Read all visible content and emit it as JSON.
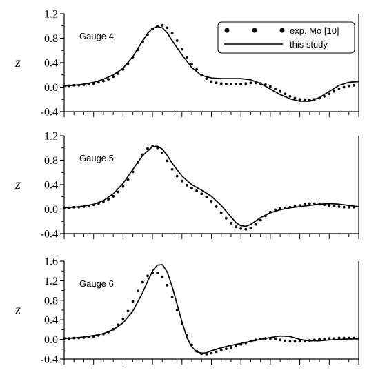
{
  "chart_data": [
    {
      "type": "line",
      "annotation": "Gauge 4",
      "ylabel": "z",
      "ylim": [
        -0.4,
        1.2
      ],
      "yticks": [
        -0.4,
        0.0,
        0.4,
        0.8,
        1.2
      ],
      "ytick_labels": [
        "-0.4",
        "0.0",
        "0.4",
        "0.8",
        "1.2"
      ],
      "xlim": [
        0,
        30
      ],
      "legend": {
        "placement": "top-right",
        "entries": [
          {
            "label": "exp. Mo [10]",
            "marker": "dot"
          },
          {
            "label": "this study",
            "marker": "line"
          }
        ]
      },
      "series": [
        {
          "name": "exp. Mo [10]",
          "style": "dots",
          "x": [
            0,
            0.5,
            1,
            1.5,
            2,
            2.5,
            3,
            3.5,
            4,
            4.5,
            5,
            5.5,
            6,
            6.5,
            7,
            7.5,
            8,
            8.5,
            9,
            9.5,
            10,
            10.5,
            11,
            11.5,
            12,
            12.5,
            13,
            13.5,
            14,
            14.5,
            15,
            15.5,
            16,
            16.5,
            17,
            17.5,
            18,
            18.5,
            19,
            19.5,
            20,
            20.5,
            21,
            21.5,
            22,
            22.5,
            23,
            23.5,
            24,
            24.5,
            25,
            25.5,
            26,
            26.5,
            27,
            27.5,
            28,
            28.5,
            29,
            29.5
          ],
          "y": [
            0.02,
            0.02,
            0.03,
            0.03,
            0.04,
            0.05,
            0.06,
            0.08,
            0.1,
            0.13,
            0.17,
            0.22,
            0.29,
            0.38,
            0.49,
            0.61,
            0.74,
            0.86,
            0.95,
            1.0,
            1.01,
            0.97,
            0.88,
            0.76,
            0.62,
            0.49,
            0.38,
            0.29,
            0.2,
            0.14,
            0.09,
            0.07,
            0.06,
            0.05,
            0.05,
            0.05,
            0.05,
            0.06,
            0.07,
            0.07,
            0.06,
            0.04,
            0.01,
            -0.03,
            -0.07,
            -0.11,
            -0.15,
            -0.18,
            -0.2,
            -0.21,
            -0.21,
            -0.2,
            -0.18,
            -0.15,
            -0.11,
            -0.07,
            -0.03,
            0.0,
            0.02,
            0.03
          ]
        },
        {
          "name": "this study",
          "style": "solid",
          "x": [
            0,
            1,
            2,
            3,
            4,
            5,
            6,
            7,
            8,
            8.5,
            9,
            9.5,
            10,
            10.5,
            11,
            12,
            13,
            14,
            15,
            16,
            17,
            18,
            19,
            20,
            21,
            22,
            23,
            24,
            25,
            26,
            27,
            28,
            29,
            30
          ],
          "y": [
            0.02,
            0.03,
            0.05,
            0.08,
            0.13,
            0.2,
            0.31,
            0.5,
            0.76,
            0.88,
            0.96,
            0.99,
            0.97,
            0.89,
            0.76,
            0.53,
            0.32,
            0.19,
            0.15,
            0.14,
            0.14,
            0.14,
            0.12,
            0.06,
            -0.03,
            -0.12,
            -0.19,
            -0.23,
            -0.23,
            -0.17,
            -0.07,
            0.03,
            0.08,
            0.09
          ]
        }
      ]
    },
    {
      "type": "line",
      "annotation": "Gauge 5",
      "ylabel": "z",
      "ylim": [
        -0.4,
        1.2
      ],
      "yticks": [
        -0.4,
        0.0,
        0.4,
        0.8,
        1.2
      ],
      "ytick_labels": [
        "-0.4",
        "0.0",
        "0.4",
        "0.8",
        "1.2"
      ],
      "xlim": [
        0,
        30
      ],
      "series": [
        {
          "name": "exp. Mo [10]",
          "style": "dots",
          "x": [
            0,
            0.5,
            1,
            1.5,
            2,
            2.5,
            3,
            3.5,
            4,
            4.5,
            5,
            5.5,
            6,
            6.5,
            7,
            7.5,
            8,
            8.5,
            9,
            9.5,
            10,
            10.5,
            11,
            11.5,
            12,
            12.5,
            13,
            13.5,
            14,
            14.5,
            15,
            15.5,
            16,
            16.5,
            17,
            17.5,
            18,
            18.5,
            19,
            19.5,
            20,
            20.5,
            21,
            21.5,
            22,
            22.5,
            23,
            23.5,
            24,
            24.5,
            25,
            25.5,
            26,
            26.5,
            27,
            27.5,
            28,
            28.5,
            29,
            29.5
          ],
          "y": [
            0.02,
            0.02,
            0.03,
            0.03,
            0.04,
            0.05,
            0.07,
            0.09,
            0.12,
            0.16,
            0.21,
            0.28,
            0.37,
            0.48,
            0.61,
            0.76,
            0.89,
            0.99,
            1.03,
            1.0,
            0.92,
            0.79,
            0.65,
            0.54,
            0.46,
            0.39,
            0.34,
            0.3,
            0.25,
            0.2,
            0.13,
            0.04,
            -0.06,
            -0.15,
            -0.23,
            -0.29,
            -0.32,
            -0.33,
            -0.31,
            -0.25,
            -0.18,
            -0.11,
            -0.05,
            -0.01,
            0.01,
            0.02,
            0.03,
            0.05,
            0.06,
            0.08,
            0.09,
            0.09,
            0.08,
            0.07,
            0.06,
            0.05,
            0.04,
            0.03,
            0.03,
            0.03
          ]
        },
        {
          "name": "this study",
          "style": "solid",
          "x": [
            0,
            1,
            2,
            3,
            4,
            5,
            6,
            7,
            8,
            9,
            9.5,
            10,
            10.5,
            11,
            12,
            13,
            14,
            15,
            16,
            17,
            17.5,
            18,
            18.5,
            19,
            20,
            21,
            22,
            23,
            24,
            25,
            26,
            27,
            28,
            29,
            30
          ],
          "y": [
            0.02,
            0.03,
            0.05,
            0.08,
            0.14,
            0.25,
            0.42,
            0.65,
            0.88,
            1.02,
            1.03,
            0.98,
            0.88,
            0.75,
            0.54,
            0.4,
            0.31,
            0.21,
            0.06,
            -0.13,
            -0.22,
            -0.27,
            -0.28,
            -0.25,
            -0.14,
            -0.06,
            -0.01,
            0.02,
            0.04,
            0.06,
            0.08,
            0.09,
            0.08,
            0.06,
            0.04
          ]
        }
      ]
    },
    {
      "type": "line",
      "annotation": "Gauge 6",
      "ylabel": "z",
      "ylim": [
        -0.4,
        1.6
      ],
      "yticks": [
        -0.4,
        0.0,
        0.4,
        0.8,
        1.2,
        1.6
      ],
      "ytick_labels": [
        "-0.4",
        "0.0",
        "0.4",
        "0.8",
        "1.2",
        "1.6"
      ],
      "xlim": [
        0,
        30
      ],
      "series": [
        {
          "name": "exp. Mo [10]",
          "style": "dots",
          "x": [
            0,
            0.5,
            1,
            1.5,
            2,
            2.5,
            3,
            3.5,
            4,
            4.5,
            5,
            5.5,
            6,
            6.5,
            7,
            7.5,
            8,
            8.5,
            9,
            9.5,
            10,
            10.5,
            11,
            11.5,
            12,
            12.5,
            13,
            13.5,
            14,
            14.5,
            15,
            15.5,
            16,
            16.5,
            17,
            17.5,
            18,
            18.5,
            19,
            19.5,
            20,
            20.5,
            21,
            21.5,
            22,
            22.5,
            23,
            23.5,
            24,
            24.5,
            25,
            25.5,
            26,
            26.5,
            27,
            27.5,
            28,
            28.5,
            29,
            29.5
          ],
          "y": [
            0.02,
            0.02,
            0.03,
            0.03,
            0.04,
            0.05,
            0.06,
            0.08,
            0.11,
            0.15,
            0.21,
            0.3,
            0.42,
            0.58,
            0.78,
            0.99,
            1.17,
            1.3,
            1.36,
            1.36,
            1.28,
            1.11,
            0.87,
            0.6,
            0.32,
            0.08,
            -0.11,
            -0.24,
            -0.29,
            -0.3,
            -0.28,
            -0.25,
            -0.22,
            -0.19,
            -0.16,
            -0.13,
            -0.1,
            -0.07,
            -0.04,
            -0.01,
            0.01,
            0.02,
            0.02,
            0.01,
            -0.01,
            -0.03,
            -0.04,
            -0.04,
            -0.04,
            -0.03,
            -0.02,
            -0.01,
            0.0,
            0.01,
            0.02,
            0.02,
            0.03,
            0.03,
            0.03,
            0.03
          ]
        },
        {
          "name": "this study",
          "style": "solid",
          "x": [
            0,
            1,
            2,
            3,
            4,
            5,
            6,
            7,
            8,
            8.5,
            9,
            9.5,
            10,
            10.5,
            11,
            11.5,
            12,
            12.5,
            13,
            13.5,
            14,
            14.5,
            15,
            16,
            17,
            18,
            19,
            20,
            21,
            22,
            23,
            24,
            25,
            26,
            27,
            28,
            29,
            30
          ],
          "y": [
            0.02,
            0.03,
            0.05,
            0.08,
            0.12,
            0.2,
            0.34,
            0.58,
            0.96,
            1.19,
            1.4,
            1.52,
            1.53,
            1.38,
            1.08,
            0.72,
            0.36,
            0.04,
            -0.15,
            -0.25,
            -0.28,
            -0.27,
            -0.23,
            -0.17,
            -0.12,
            -0.08,
            -0.04,
            0.0,
            0.04,
            0.07,
            0.06,
            0.0,
            -0.03,
            -0.03,
            -0.01,
            0.0,
            0.01,
            0.01
          ]
        }
      ]
    }
  ]
}
